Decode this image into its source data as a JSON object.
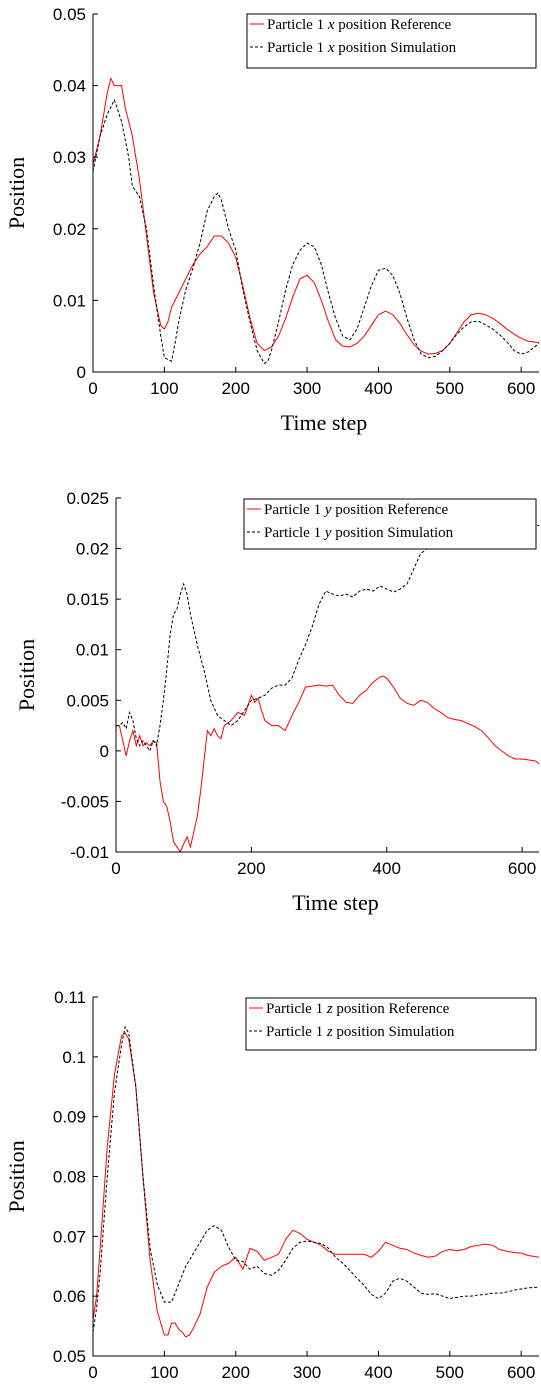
{
  "chart_data": [
    {
      "type": "line",
      "xlabel": "Time step",
      "ylabel": "Position",
      "xlim": [
        0,
        625
      ],
      "ylim": [
        0,
        0.05
      ],
      "xticks": [
        "0",
        "100",
        "200",
        "300",
        "400",
        "500",
        "600"
      ],
      "yticks": [
        "0",
        "0.01",
        "0.02",
        "0.03",
        "0.04",
        "0.05"
      ],
      "grid": false,
      "legend_position": "top-right",
      "series": [
        {
          "name": "Particle 1 x position Reference",
          "color": "#ff0000",
          "dash": "solid",
          "x": [
            0,
            10,
            20,
            25,
            30,
            40,
            45,
            55,
            65,
            75,
            85,
            95,
            100,
            105,
            110,
            120,
            130,
            140,
            150,
            160,
            170,
            180,
            190,
            200,
            210,
            220,
            230,
            240,
            250,
            260,
            270,
            280,
            290,
            300,
            310,
            320,
            330,
            340,
            350,
            360,
            370,
            380,
            390,
            400,
            410,
            420,
            430,
            440,
            450,
            460,
            470,
            480,
            490,
            500,
            510,
            520,
            530,
            540,
            550,
            560,
            570,
            580,
            590,
            600,
            610,
            625
          ],
          "y": [
            0.029,
            0.033,
            0.039,
            0.041,
            0.04,
            0.04,
            0.037,
            0.033,
            0.027,
            0.019,
            0.011,
            0.0065,
            0.006,
            0.007,
            0.009,
            0.011,
            0.013,
            0.015,
            0.0165,
            0.0175,
            0.019,
            0.019,
            0.018,
            0.016,
            0.012,
            0.0075,
            0.004,
            0.003,
            0.0035,
            0.005,
            0.0075,
            0.0105,
            0.013,
            0.0135,
            0.0125,
            0.01,
            0.007,
            0.0045,
            0.0036,
            0.0035,
            0.004,
            0.005,
            0.0065,
            0.008,
            0.0085,
            0.008,
            0.0068,
            0.0052,
            0.0038,
            0.0029,
            0.0025,
            0.0026,
            0.003,
            0.004,
            0.0055,
            0.007,
            0.008,
            0.0082,
            0.008,
            0.0075,
            0.0068,
            0.006,
            0.0053,
            0.0047,
            0.0043,
            0.0041
          ]
        },
        {
          "name": "Particle 1 x position Simulation",
          "color": "#000000",
          "dash": "dashed",
          "x": [
            0,
            10,
            20,
            30,
            40,
            50,
            55,
            65,
            75,
            85,
            95,
            100,
            110,
            115,
            120,
            130,
            140,
            150,
            160,
            170,
            175,
            180,
            190,
            200,
            210,
            220,
            230,
            240,
            245,
            250,
            260,
            270,
            280,
            290,
            300,
            310,
            320,
            330,
            340,
            350,
            360,
            370,
            380,
            390,
            400,
            410,
            420,
            430,
            440,
            450,
            460,
            470,
            480,
            490,
            500,
            510,
            520,
            530,
            540,
            550,
            560,
            570,
            580,
            590,
            600,
            610,
            625
          ],
          "y": [
            0.028,
            0.033,
            0.036,
            0.038,
            0.035,
            0.03,
            0.026,
            0.0245,
            0.02,
            0.012,
            0.005,
            0.002,
            0.0015,
            0.004,
            0.007,
            0.0115,
            0.0145,
            0.018,
            0.0225,
            0.0245,
            0.025,
            0.024,
            0.02,
            0.017,
            0.0115,
            0.007,
            0.003,
            0.0012,
            0.0015,
            0.003,
            0.007,
            0.0115,
            0.015,
            0.017,
            0.018,
            0.0175,
            0.015,
            0.011,
            0.0075,
            0.005,
            0.0045,
            0.006,
            0.009,
            0.012,
            0.0142,
            0.0145,
            0.0135,
            0.011,
            0.0075,
            0.0045,
            0.0025,
            0.002,
            0.0022,
            0.003,
            0.004,
            0.0053,
            0.0063,
            0.007,
            0.0071,
            0.0066,
            0.006,
            0.0052,
            0.0042,
            0.003,
            0.0025,
            0.0028,
            0.004
          ]
        }
      ]
    },
    {
      "type": "line",
      "xlabel": "Time step",
      "ylabel": "Position",
      "xlim": [
        0,
        625
      ],
      "ylim": [
        -0.01,
        0.025
      ],
      "xticks": [
        "0",
        "200",
        "400",
        "600"
      ],
      "yticks": [
        "-0.01",
        "-0.005",
        "0",
        "0.005",
        "0.01",
        "0.015",
        "0.02",
        "0.025"
      ],
      "grid": false,
      "legend_position": "top-right",
      "series": [
        {
          "name": "Particle 1 y position Reference",
          "color": "#ff0000",
          "dash": "solid",
          "x": [
            0,
            5,
            10,
            15,
            20,
            25,
            30,
            35,
            40,
            45,
            50,
            55,
            60,
            65,
            70,
            75,
            80,
            85,
            90,
            95,
            100,
            105,
            110,
            115,
            120,
            125,
            130,
            135,
            140,
            145,
            150,
            155,
            160,
            170,
            180,
            190,
            200,
            205,
            210,
            215,
            220,
            230,
            240,
            250,
            260,
            270,
            280,
            290,
            300,
            310,
            320,
            330,
            340,
            350,
            360,
            370,
            380,
            390,
            395,
            400,
            410,
            420,
            430,
            440,
            450,
            460,
            470,
            480,
            490,
            500,
            510,
            520,
            530,
            540,
            550,
            560,
            570,
            580,
            590,
            600,
            610,
            620,
            625
          ],
          "y": [
            0.0025,
            0.0025,
            0.001,
            -0.0005,
            0.001,
            0.002,
            0.0005,
            0.0015,
            0.0005,
            0.0008,
            0.0005,
            0.001,
            0.0008,
            -0.003,
            -0.005,
            -0.0055,
            -0.007,
            -0.009,
            -0.0095,
            -0.01,
            -0.0092,
            -0.0085,
            -0.0095,
            -0.008,
            -0.0065,
            -0.004,
            -0.001,
            0.002,
            0.0015,
            0.0022,
            0.0015,
            0.0012,
            0.0025,
            0.003,
            0.0038,
            0.0035,
            0.0055,
            0.0048,
            0.0052,
            0.004,
            0.003,
            0.0025,
            0.0025,
            0.002,
            0.0035,
            0.0048,
            0.0063,
            0.0064,
            0.0065,
            0.0064,
            0.0065,
            0.0055,
            0.0048,
            0.0047,
            0.0055,
            0.006,
            0.0068,
            0.0073,
            0.0074,
            0.0072,
            0.0063,
            0.0052,
            0.0047,
            0.0045,
            0.005,
            0.0048,
            0.0042,
            0.0038,
            0.0033,
            0.0031,
            0.003,
            0.0027,
            0.0024,
            0.002,
            0.0013,
            0.0005,
            0.0,
            -0.0005,
            -0.0008,
            -0.0008,
            -0.0009,
            -0.001,
            -0.0013
          ]
        },
        {
          "name": "Particle 1 y position Simulation",
          "color": "#000000",
          "dash": "dashed",
          "x": [
            0,
            5,
            10,
            15,
            20,
            25,
            30,
            35,
            40,
            45,
            50,
            55,
            60,
            65,
            70,
            75,
            80,
            85,
            90,
            95,
            100,
            105,
            110,
            115,
            120,
            130,
            140,
            150,
            160,
            170,
            180,
            190,
            200,
            210,
            220,
            230,
            240,
            250,
            260,
            270,
            280,
            290,
            300,
            310,
            320,
            330,
            340,
            350,
            360,
            370,
            380,
            390,
            400,
            410,
            420,
            430,
            440,
            450,
            460,
            470,
            480,
            490,
            500,
            510,
            520,
            530,
            540,
            550,
            560,
            570,
            580,
            590,
            600,
            610,
            625
          ],
          "y": [
            0.0025,
            0.0025,
            0.0028,
            0.0022,
            0.0038,
            0.003,
            0.0012,
            0.0005,
            0.001,
            0.0005,
            0.0,
            0.001,
            0.0005,
            0.0025,
            0.005,
            0.008,
            0.0115,
            0.0135,
            0.014,
            0.0155,
            0.0165,
            0.0155,
            0.0135,
            0.012,
            0.0105,
            0.008,
            0.005,
            0.0035,
            0.003,
            0.0025,
            0.003,
            0.004,
            0.005,
            0.0052,
            0.0055,
            0.0062,
            0.0065,
            0.0065,
            0.0072,
            0.009,
            0.0105,
            0.0123,
            0.0145,
            0.0158,
            0.0155,
            0.0153,
            0.0155,
            0.0152,
            0.0158,
            0.016,
            0.0158,
            0.0163,
            0.016,
            0.0157,
            0.016,
            0.0165,
            0.018,
            0.0195,
            0.02,
            0.0202,
            0.0204,
            0.0206,
            0.0208,
            0.021,
            0.0213,
            0.0215,
            0.0217,
            0.0218,
            0.0219,
            0.022,
            0.022,
            0.0221,
            0.0222,
            0.0222,
            0.0223
          ]
        }
      ]
    },
    {
      "type": "line",
      "xlabel": "Time step",
      "ylabel": "Position",
      "xlim": [
        0,
        625
      ],
      "ylim": [
        0.05,
        0.11
      ],
      "xticks": [
        "0",
        "100",
        "200",
        "300",
        "400",
        "500",
        "600"
      ],
      "yticks": [
        "0.05",
        "0.06",
        "0.07",
        "0.08",
        "0.09",
        "0.1",
        "0.11"
      ],
      "grid": false,
      "legend_position": "top-right",
      "series": [
        {
          "name": "Particle 1 z position Reference",
          "color": "#ff0000",
          "dash": "solid",
          "x": [
            0,
            5,
            10,
            20,
            30,
            40,
            45,
            50,
            60,
            70,
            80,
            90,
            100,
            105,
            110,
            115,
            120,
            125,
            130,
            135,
            140,
            150,
            160,
            170,
            180,
            190,
            200,
            210,
            220,
            230,
            240,
            250,
            260,
            270,
            280,
            290,
            300,
            310,
            320,
            330,
            340,
            350,
            360,
            370,
            380,
            390,
            400,
            410,
            420,
            430,
            440,
            450,
            460,
            470,
            480,
            490,
            500,
            510,
            520,
            530,
            540,
            550,
            560,
            570,
            580,
            590,
            600,
            610,
            625
          ],
          "y": [
            0.056,
            0.06,
            0.068,
            0.085,
            0.097,
            0.1035,
            0.104,
            0.103,
            0.095,
            0.08,
            0.066,
            0.0575,
            0.0535,
            0.0535,
            0.0555,
            0.0555,
            0.0545,
            0.054,
            0.0532,
            0.0535,
            0.0545,
            0.057,
            0.0615,
            0.064,
            0.065,
            0.0655,
            0.0665,
            0.0645,
            0.068,
            0.0675,
            0.066,
            0.0665,
            0.067,
            0.0695,
            0.071,
            0.0705,
            0.0695,
            0.069,
            0.0685,
            0.0675,
            0.067,
            0.067,
            0.067,
            0.067,
            0.067,
            0.0665,
            0.0675,
            0.069,
            0.0685,
            0.068,
            0.0678,
            0.0672,
            0.0668,
            0.0665,
            0.0667,
            0.0675,
            0.0678,
            0.0676,
            0.0678,
            0.0683,
            0.0685,
            0.0687,
            0.0685,
            0.0678,
            0.0675,
            0.0673,
            0.0672,
            0.0668,
            0.0665
          ]
        },
        {
          "name": "Particle 1 z position Simulation",
          "color": "#000000",
          "dash": "dashed",
          "x": [
            0,
            5,
            10,
            20,
            30,
            40,
            45,
            50,
            60,
            70,
            80,
            90,
            100,
            110,
            120,
            130,
            140,
            150,
            160,
            170,
            180,
            190,
            200,
            210,
            220,
            230,
            240,
            250,
            260,
            270,
            280,
            290,
            300,
            310,
            320,
            330,
            340,
            350,
            360,
            370,
            380,
            390,
            400,
            410,
            420,
            430,
            440,
            450,
            460,
            470,
            480,
            490,
            500,
            510,
            520,
            530,
            540,
            550,
            560,
            570,
            580,
            590,
            600,
            610,
            625
          ],
          "y": [
            0.054,
            0.058,
            0.064,
            0.08,
            0.094,
            0.102,
            0.105,
            0.104,
            0.095,
            0.08,
            0.068,
            0.062,
            0.059,
            0.059,
            0.062,
            0.065,
            0.067,
            0.069,
            0.071,
            0.0718,
            0.071,
            0.0682,
            0.066,
            0.0658,
            0.0645,
            0.065,
            0.0638,
            0.0635,
            0.0643,
            0.066,
            0.068,
            0.069,
            0.0692,
            0.069,
            0.0688,
            0.068,
            0.0665,
            0.0655,
            0.0643,
            0.063,
            0.0618,
            0.0603,
            0.0596,
            0.0605,
            0.0625,
            0.063,
            0.0625,
            0.0615,
            0.0605,
            0.0603,
            0.0604,
            0.06,
            0.0596,
            0.0598,
            0.06,
            0.06,
            0.0602,
            0.0603,
            0.0605,
            0.0605,
            0.0607,
            0.061,
            0.0612,
            0.0614,
            0.0615
          ]
        }
      ]
    }
  ]
}
